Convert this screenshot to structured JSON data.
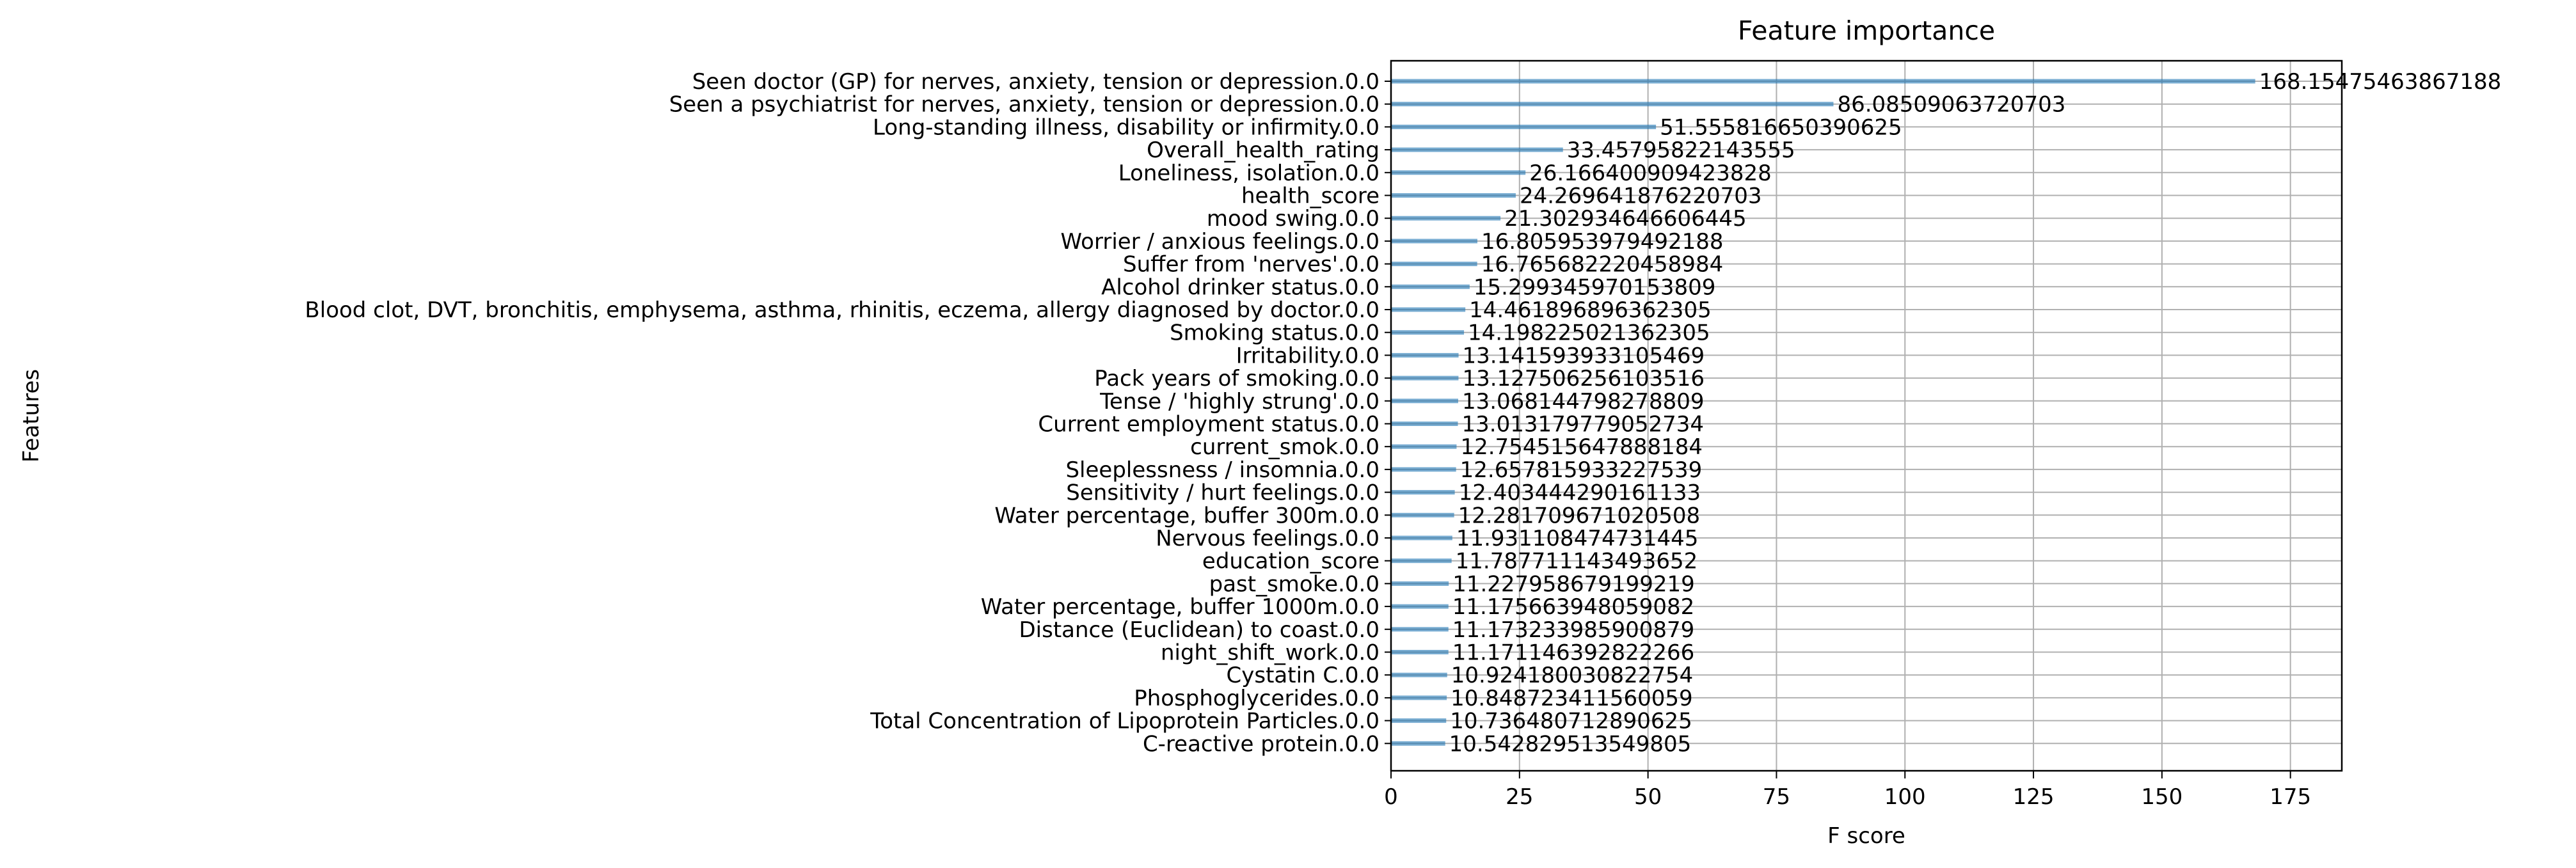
{
  "chart_data": {
    "type": "bar",
    "orientation": "horizontal",
    "title": "Feature importance",
    "xlabel": "F score",
    "ylabel": "Features",
    "xlim": [
      0,
      185
    ],
    "xticks": [
      0,
      25,
      50,
      75,
      100,
      125,
      150,
      175
    ],
    "grid": true,
    "bar_color": "#1f77b4",
    "categories": [
      "Seen doctor (GP) for nerves, anxiety, tension or depression.0.0",
      "Seen a psychiatrist for nerves, anxiety, tension or depression.0.0",
      "Long-standing illness, disability or infirmity.0.0",
      "Overall_health_rating",
      "Loneliness, isolation.0.0",
      "health_score",
      "mood swing.0.0",
      "Worrier / anxious feelings.0.0",
      "Suffer from 'nerves'.0.0",
      "Alcohol drinker status.0.0",
      "Blood clot, DVT, bronchitis, emphysema, asthma, rhinitis, eczema, allergy diagnosed by doctor.0.0",
      "Smoking status.0.0",
      "Irritability.0.0",
      "Pack years of smoking.0.0",
      "Tense / 'highly strung'.0.0",
      "Current employment status.0.0",
      "current_smok.0.0",
      "Sleeplessness / insomnia.0.0",
      "Sensitivity / hurt feelings.0.0",
      "Water percentage, buffer 300m.0.0",
      "Nervous feelings.0.0",
      "education_score",
      "past_smoke.0.0",
      "Water percentage, buffer 1000m.0.0",
      "Distance (Euclidean) to coast.0.0",
      "night_shift_work.0.0",
      "Cystatin C.0.0",
      "Phosphoglycerides.0.0",
      "Total Concentration of Lipoprotein Particles.0.0",
      "C-reactive protein.0.0"
    ],
    "values": [
      168.15475463867188,
      86.08509063720703,
      51.555816650390625,
      33.45795822143555,
      26.166400909423828,
      24.269641876220703,
      21.302934646606445,
      16.805953979492188,
      16.765682220458984,
      15.299345970153809,
      14.461896896362305,
      14.198225021362305,
      13.141593933105469,
      13.127506256103516,
      13.068144798278809,
      13.013179779052734,
      12.754515647888184,
      12.657815933227539,
      12.403444290161133,
      12.281709671020508,
      11.931108474731445,
      11.787711143493652,
      11.227958679199219,
      11.175663948059082,
      11.173233985900879,
      11.171146392822266,
      10.924180030822754,
      10.848723411560059,
      10.736480712890625,
      10.542829513549805
    ],
    "value_labels": [
      "168.15475463867188",
      "86.08509063720703",
      "51.555816650390625",
      "33.45795822143555",
      "26.166400909423828",
      "24.269641876220703",
      "21.302934646606445",
      "16.805953979492188",
      "16.765682220458984",
      "15.299345970153809",
      "14.461896896362305",
      "14.198225021362305",
      "13.141593933105469",
      "13.127506256103516",
      "13.068144798278809",
      "13.013179779052734",
      "12.754515647888184",
      "12.657815933227539",
      "12.403444290161133",
      "12.281709671020508",
      "11.931108474731445",
      "11.787711143493652",
      "11.227958679199219",
      "11.175663948059082",
      "11.173233985900879",
      "11.171146392822266",
      "10.924180030822754",
      "10.848723411560059",
      "10.736480712890625",
      "10.542829513549805"
    ]
  }
}
